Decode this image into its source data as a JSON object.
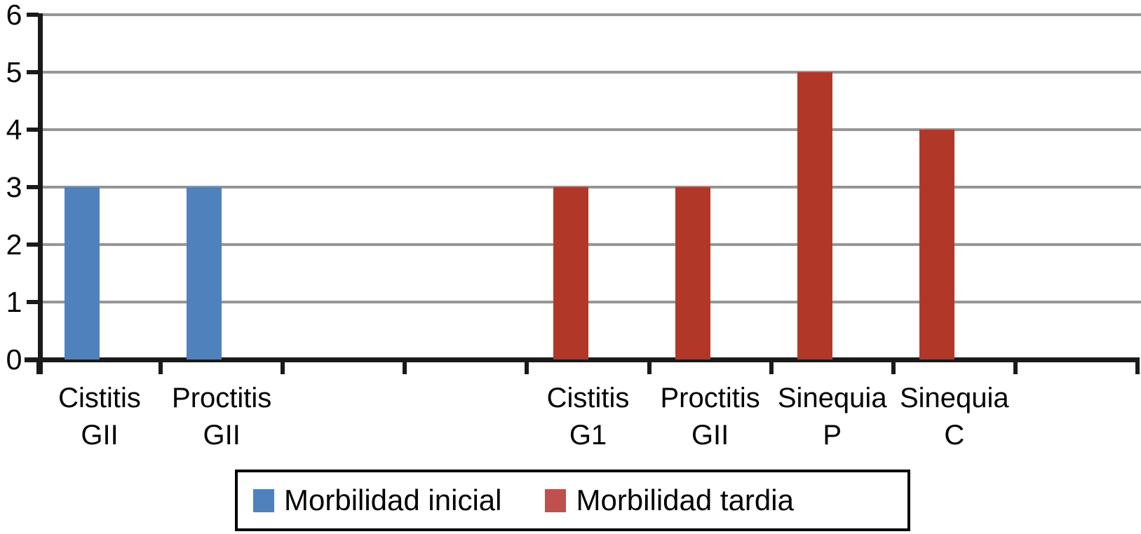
{
  "chart_data": {
    "type": "bar",
    "title": "",
    "xlabel": "",
    "ylabel": "",
    "ylim": [
      0,
      6
    ],
    "yticks": [
      0,
      1,
      2,
      3,
      4,
      5,
      6
    ],
    "grid": true,
    "legend_position": "bottom",
    "categories": [
      {
        "line1": "Cistitis",
        "line2": "GII"
      },
      {
        "line1": "Proctitis",
        "line2": "GII"
      },
      {
        "line1": "",
        "line2": ""
      },
      {
        "line1": "",
        "line2": ""
      },
      {
        "line1": "Cistitis",
        "line2": "G1"
      },
      {
        "line1": "Proctitis",
        "line2": "GII"
      },
      {
        "line1": "Sinequia",
        "line2": "P"
      },
      {
        "line1": "Sinequia",
        "line2": "C"
      },
      {
        "line1": "",
        "line2": ""
      }
    ],
    "series": [
      {
        "name": "Morbilidad inicial",
        "color": "#4F81BD",
        "values": [
          3,
          3,
          null,
          null,
          null,
          null,
          null,
          null,
          null
        ]
      },
      {
        "name": "Morbilidad tardia",
        "color": "#B13828",
        "values": [
          null,
          null,
          null,
          null,
          3,
          3,
          5,
          4,
          null
        ]
      }
    ]
  },
  "legend": {
    "entries": [
      {
        "label": "Morbilidad inicial",
        "swatch_color": "#4F81BD"
      },
      {
        "label": "Morbilidad tardia",
        "swatch_color": "#C0504D"
      }
    ]
  },
  "colors": {
    "axis": "#1A1A1A",
    "gridline": "#969696",
    "tick": "#1A1A1A",
    "legend_border": "#000000",
    "background": "#FFFFFF",
    "text": "#000000"
  }
}
